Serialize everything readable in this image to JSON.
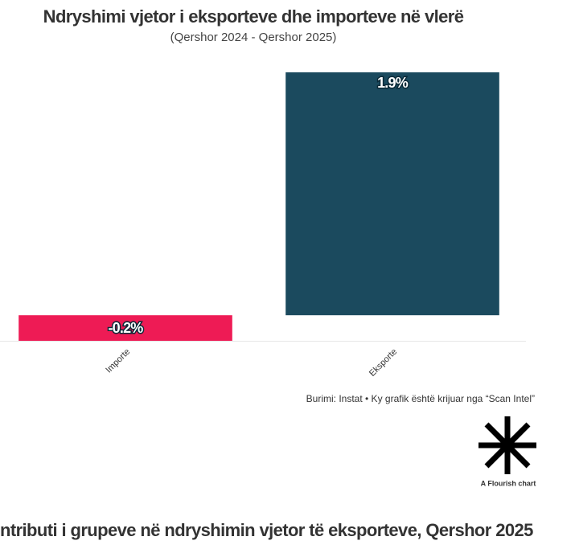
{
  "chart_data": {
    "type": "bar",
    "title": "Ndryshimi vjetor i eksporteve dhe importeve në vlerë",
    "subtitle": "(Qershor 2024 - Qershor 2025)",
    "categories": [
      "Importe",
      "Eksporte"
    ],
    "values": [
      -0.2,
      1.9
    ],
    "value_labels": [
      "-0.2%",
      "1.9%"
    ],
    "colors": [
      "#ee1b55",
      "#1b4a5e"
    ],
    "ylim": [
      -0.2,
      1.9
    ]
  },
  "footer": {
    "source": "Burimi: Instat • Ky grafik është krijuar nga “Scan Intel”",
    "credit": "A Flourish chart"
  },
  "next_title": "ntributi i grupeve në ndryshimin vjetor të eksporteve, Qershor 2025"
}
